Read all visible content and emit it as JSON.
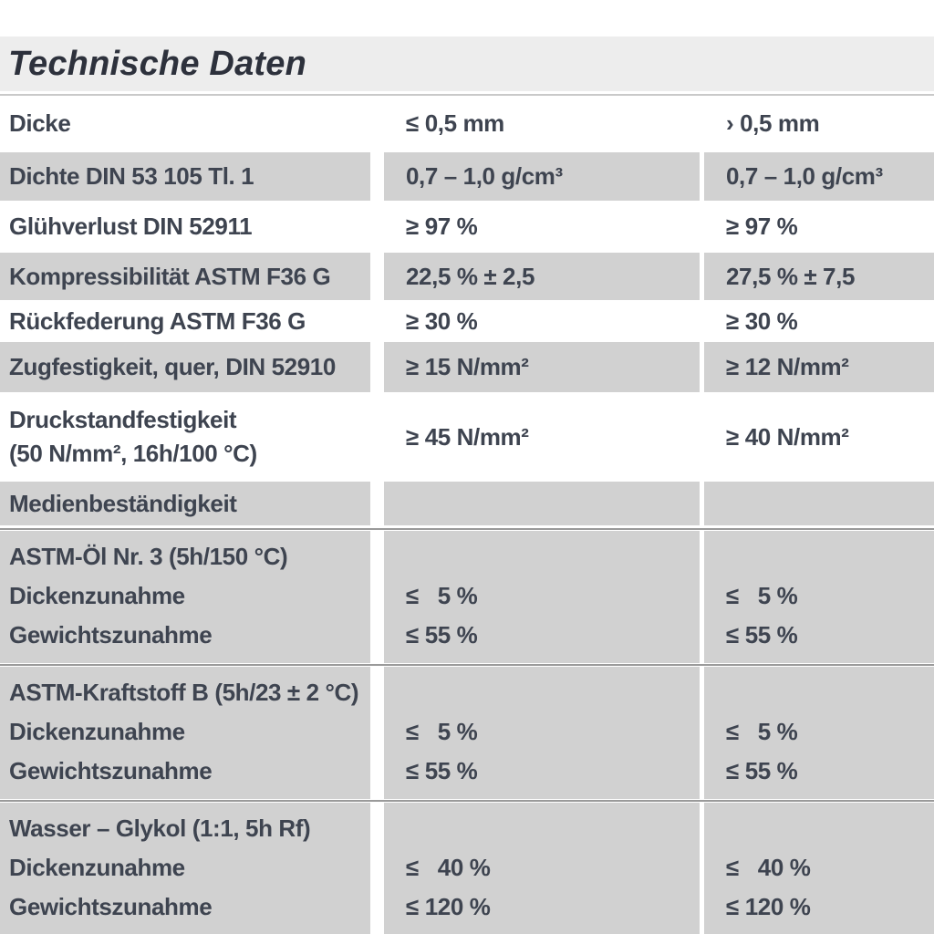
{
  "page": {
    "title": "Technische Daten"
  },
  "colors": {
    "title_band": "#ededed",
    "row_gray": "#d1d1d1",
    "text": "#3e4450",
    "section_divider": "#9a9a9a"
  },
  "table": {
    "rows": [
      {
        "label": "Dicke",
        "v1": "≤ 0,5 mm",
        "v2": "› 0,5 mm"
      },
      {
        "label": "Dichte DIN 53 105 Tl. 1",
        "v1": "0,7 – 1,0 g/cm³",
        "v2": "0,7 – 1,0 g/cm³"
      },
      {
        "label": "Glühverlust DIN 52911",
        "v1": "≥ 97 %",
        "v2": "≥ 97 %"
      },
      {
        "label": "Kompressibilität ASTM F36 G",
        "v1": "22,5 % ± 2,5",
        "v2": "27,5 % ± 7,5"
      },
      {
        "label": "Rückfederung ASTM F36 G",
        "v1": "≥ 30 %",
        "v2": "≥ 30 %"
      },
      {
        "label": "Zugfestigkeit, quer, DIN 52910",
        "v1": "≥ 15 N/mm²",
        "v2": "≥ 12 N/mm²"
      },
      {
        "label": "Druckstandfestigkeit",
        "label2": "(50 N/mm², 16h/100 °C)",
        "v1": "≥ 45 N/mm²",
        "v2": "≥ 40 N/mm²"
      },
      {
        "label": "Medienbeständigkeit",
        "v1": "",
        "v2": ""
      }
    ],
    "sections": [
      {
        "header": "ASTM-Öl Nr. 3 (5h/150 °C)",
        "subrows": [
          {
            "label": "Dickenzunahme",
            "v1": "≤  5 %",
            "v2": "≤  5 %"
          },
          {
            "label": "Gewichtszunahme",
            "v1": "≤ 55 %",
            "v2": "≤ 55 %"
          }
        ]
      },
      {
        "header": "ASTM-Kraftstoff B (5h/23 ± 2 °C)",
        "subrows": [
          {
            "label": "Dickenzunahme",
            "v1": "≤  5 %",
            "v2": "≤  5 %"
          },
          {
            "label": "Gewichtszunahme",
            "v1": "≤ 55 %",
            "v2": "≤ 55 %"
          }
        ]
      },
      {
        "header": "Wasser – Glykol (1:1, 5h Rf)",
        "subrows": [
          {
            "label": "Dickenzunahme",
            "v1": "≤  40 %",
            "v2": "≤  40 %"
          },
          {
            "label": "Gewichtszunahme",
            "v1": "≤ 120 %",
            "v2": "≤ 120 %"
          }
        ]
      }
    ]
  }
}
